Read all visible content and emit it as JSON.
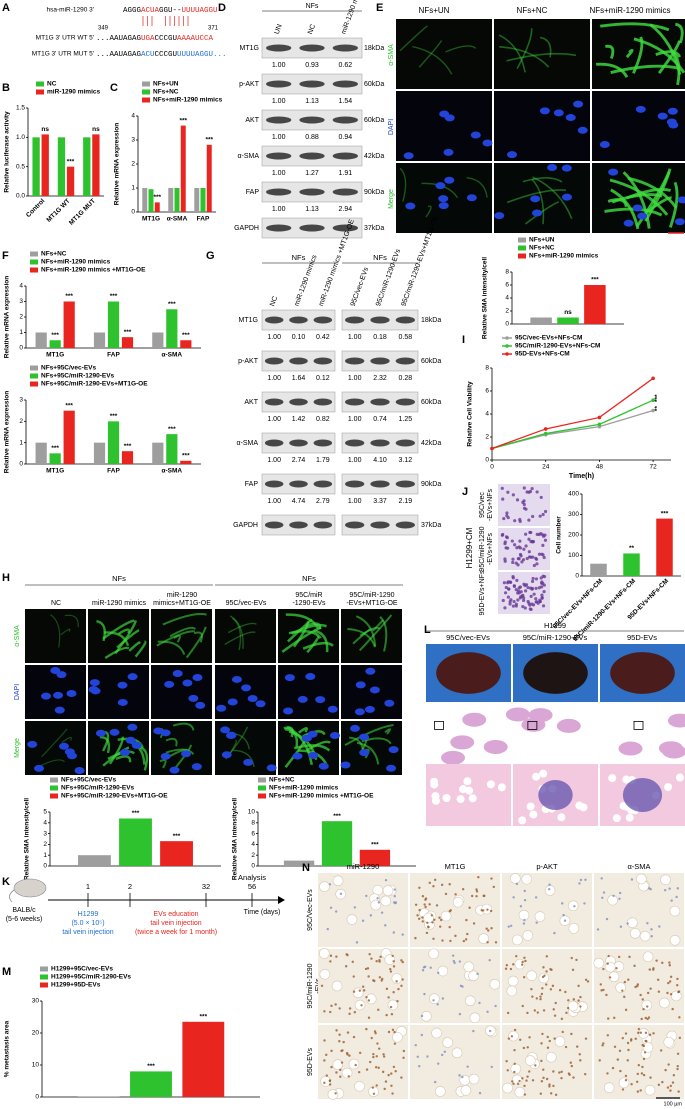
{
  "panels": {
    "a": {
      "label": "A",
      "positions": [
        "349",
        "371"
      ],
      "rows": [
        {
          "name": "hsa-miR-1290 3'",
          "segments": [
            {
              "text": "AGGG",
              "color": "#000000"
            },
            {
              "text": "ACUA",
              "color": "#e8251f"
            },
            {
              "text": "GGU--",
              "color": "#000000"
            },
            {
              "text": "UUUUAGGU",
              "color": "#e8251f"
            }
          ]
        },
        {
          "name": "MT1G 3' UTR WT 5'",
          "segments": [
            {
              "text": "...AAUAGAG",
              "color": "#000000"
            },
            {
              "text": "UGA",
              "color": "#e8251f"
            },
            {
              "text": "CCCGU",
              "color": "#000000"
            },
            {
              "text": "AAAAUCCA",
              "color": "#e8251f"
            }
          ]
        },
        {
          "name": "MT1G 3' UTR MUT 5'",
          "segments": [
            {
              "text": "...AAUAGAG",
              "color": "#000000"
            },
            {
              "text": "ACU",
              "color": "#1f6fd0"
            },
            {
              "text": "CCCGU",
              "color": "#000000"
            },
            {
              "text": "UUUUAGGU...",
              "color": "#1f6fd0"
            }
          ]
        }
      ]
    },
    "b": {
      "label": "B",
      "type": "bar",
      "ylabel": "Relative luciferase activity",
      "categories": [
        "Control",
        "MT1G WT",
        "MT1G MUT"
      ],
      "series": [
        {
          "name": "NC",
          "color": "#2ec22e",
          "values": [
            1.0,
            1.0,
            1.0
          ]
        },
        {
          "name": "miR-1290 mimics",
          "color": "#e8251f",
          "values": [
            1.05,
            0.5,
            1.05
          ],
          "sig": [
            "ns",
            "***",
            "ns"
          ]
        }
      ],
      "ylim": [
        0,
        1.5
      ],
      "yticks": [
        {
          "value": 0,
          "label": "0.0"
        },
        {
          "value": 0.5,
          "label": "0.5"
        },
        {
          "value": 1,
          "label": "1.0"
        },
        {
          "value": 1.5,
          "label": "1.5"
        }
      ]
    },
    "c": {
      "label": "C",
      "type": "bar",
      "ylabel": "Relative mRNA expression",
      "categories": [
        "MT1G",
        "α-SMA",
        "FAP"
      ],
      "series": [
        {
          "name": "NFs+UN",
          "color": "#9e9e9e",
          "values": [
            1.0,
            1.0,
            1.0
          ]
        },
        {
          "name": "NFs+NC",
          "color": "#2ec22e",
          "values": [
            0.95,
            1.0,
            1.0
          ]
        },
        {
          "name": "NFs+miR-1290 mimics",
          "color": "#e8251f",
          "values": [
            0.4,
            3.6,
            2.8
          ],
          "sig": [
            "***",
            "***",
            "***"
          ]
        }
      ],
      "ylim": [
        0,
        4
      ],
      "yticks": [
        0,
        1,
        2,
        3,
        4
      ]
    },
    "d": {
      "label": "D",
      "header": "NFs",
      "lanes": [
        "UN",
        "NC",
        "miR-1290 mimics"
      ],
      "rows": [
        {
          "name": "MT1G",
          "kda": "18kDa",
          "quant": [
            "1.00",
            "0.93",
            "0.62"
          ]
        },
        {
          "name": "p-AKT",
          "kda": "60kDa",
          "quant": [
            "1.00",
            "1.13",
            "1.54"
          ]
        },
        {
          "name": "AKT",
          "kda": "60kDa",
          "quant": [
            "1.00",
            "0.88",
            "0.94"
          ]
        },
        {
          "name": "α-SMA",
          "kda": "42kDa",
          "quant": [
            "1.00",
            "1.27",
            "1.91"
          ]
        },
        {
          "name": "FAP",
          "kda": "90kDa",
          "quant": [
            "1.00",
            "1.13",
            "2.94"
          ]
        },
        {
          "name": "GAPDH",
          "kda": "37kDa"
        }
      ]
    },
    "e": {
      "label": "E",
      "columns": [
        "NFs+UN",
        "NFs+NC",
        "NFs+miR-1290 mimics"
      ],
      "rows": [
        {
          "name": "α-SMA",
          "color": "#2ec22e"
        },
        {
          "name": "DAPI",
          "color": "#2040d0"
        },
        {
          "name": "Merge",
          "color": "#2ec22e"
        }
      ],
      "chart": {
        "type": "bar",
        "ylabel": "Relative SMA intensity/cell",
        "categories": [
          null
        ],
        "series": [
          {
            "name": "NFs+UN",
            "color": "#9e9e9e",
            "values": [
              1.0
            ]
          },
          {
            "name": "NFs+NC",
            "color": "#2ec22e",
            "values": [
              1.0
            ],
            "sig": [
              "ns"
            ]
          },
          {
            "name": "NFs+miR-1290 mimics",
            "color": "#e8251f",
            "values": [
              6.0
            ],
            "sig": [
              "***"
            ]
          }
        ],
        "ylim": [
          0,
          8
        ],
        "yticks": [
          0,
          2,
          4,
          6,
          8
        ]
      }
    },
    "f": {
      "label": "F",
      "charts": [
        {
          "type": "bar",
          "ylabel": "Relative mRNA expression",
          "categories": [
            "MT1G",
            "FAP",
            "α-SMA"
          ],
          "series": [
            {
              "name": "NFs+NC",
              "color": "#9e9e9e",
              "values": [
                1.0,
                1.0,
                1.0
              ]
            },
            {
              "name": "NFs+miR-1290 mimics",
              "color": "#2ec22e",
              "values": [
                0.5,
                3.0,
                2.5
              ],
              "sig": [
                "***",
                "***",
                "***"
              ]
            },
            {
              "name": "NFs+miR-1290 mimics +MT1G-OE",
              "color": "#e8251f",
              "values": [
                3.0,
                0.7,
                0.5
              ],
              "sig": [
                "***",
                "***",
                "***"
              ]
            }
          ],
          "ylim": [
            0,
            4
          ],
          "yticks": [
            0,
            1,
            2,
            3,
            4
          ]
        },
        {
          "type": "bar",
          "ylabel": "Relative mRNA expression",
          "categories": [
            "MT1G",
            "FAP",
            "α-SMA"
          ],
          "series": [
            {
              "name": "NFs+95C/vec-EVs",
              "color": "#9e9e9e",
              "values": [
                1.0,
                1.0,
                1.0
              ]
            },
            {
              "name": "NFs+95C/miR-1290-EVs",
              "color": "#2ec22e",
              "values": [
                0.5,
                2.0,
                1.4
              ],
              "sig": [
                "***",
                "***",
                "***"
              ]
            },
            {
              "name": "NFs+95C/miR-1290-EVs+MT1G-OE",
              "color": "#e8251f",
              "values": [
                2.5,
                0.6,
                0.15
              ],
              "sig": [
                "***",
                "***",
                "***"
              ]
            }
          ],
          "ylim": [
            0,
            3
          ],
          "yticks": [
            0,
            1,
            2,
            3
          ]
        }
      ]
    },
    "g": {
      "label": "G",
      "rows": [
        {
          "name": "MT1G",
          "kda": "18kDa"
        },
        {
          "name": "p-AKT",
          "kda": "60kDa"
        },
        {
          "name": "AKT",
          "kda": "60kDa"
        },
        {
          "name": "α-SMA",
          "kda": "42kDa"
        },
        {
          "name": "FAP",
          "kda": "90kDa"
        },
        {
          "name": "GAPDH",
          "kda": "37kDa"
        }
      ],
      "blots": [
        {
          "header": "NFs",
          "lanes": [
            "NC",
            "miR-1290 mimics",
            "miR-1290 mimics +MT1G-OE"
          ],
          "quant": [
            [
              "1.00",
              "0.10",
              "0.42"
            ],
            [
              "1.00",
              "1.64",
              "0.12"
            ],
            [
              "1.00",
              "1.42",
              "0.82"
            ],
            [
              "1.00",
              "2.74",
              "1.79"
            ],
            [
              "1.00",
              "4.74",
              "2.79"
            ]
          ]
        },
        {
          "header": "NFs",
          "lanes": [
            "95C/vec-EVs",
            "95C/miR-1290-EVs",
            "95C/miR-1290-EVs+MT1G-OE"
          ],
          "quant": [
            [
              "1.00",
              "0.18",
              "0.58"
            ],
            [
              "1.00",
              "2.32",
              "0.28"
            ],
            [
              "1.00",
              "0.74",
              "1.25"
            ],
            [
              "1.00",
              "4.10",
              "3.12"
            ],
            [
              "1.00",
              "3.37",
              "2.19"
            ]
          ]
        }
      ]
    },
    "h": {
      "label": "H",
      "groups": [
        "NFs",
        "NFs"
      ],
      "columns": [
        [
          "NC"
        ],
        [
          "miR-1290 mimics"
        ],
        [
          "miR-1290",
          "mimics+MT1G-OE"
        ],
        [
          "95C/vec-EVs"
        ],
        [
          "95C/miR",
          "-1290-EVs"
        ],
        [
          "95C/miR-1290",
          "-EVs+MT1G-OE"
        ]
      ],
      "rows": [
        {
          "name": "α-SMA",
          "color": "#2ec22e"
        },
        {
          "name": "DAPI",
          "color": "#2040d0"
        },
        {
          "name": "Merge",
          "color": "#2ec22e"
        }
      ],
      "charts": [
        {
          "type": "bar",
          "ylabel": "Relative SMA intensity/cell",
          "categories": [
            null
          ],
          "series": [
            {
              "name": "NFs+95C/vec-EVs",
              "color": "#9e9e9e",
              "values": [
                1.0
              ]
            },
            {
              "name": "NFs+95C/miR-1290-EVs",
              "color": "#2ec22e",
              "values": [
                4.4
              ],
              "sig": [
                "***"
              ]
            },
            {
              "name": "NFs+95C/miR-1290-EVs+MT1G-OE",
              "color": "#e8251f",
              "values": [
                2.3
              ],
              "sig": [
                "***"
              ]
            }
          ],
          "ylim": [
            0,
            5
          ],
          "yticks": [
            0,
            1,
            2,
            3,
            4,
            5
          ]
        },
        {
          "type": "bar",
          "ylabel": "Relative SMA intensity/cell",
          "categories": [
            null
          ],
          "series": [
            {
              "name": "NFs+NC",
              "color": "#9e9e9e",
              "values": [
                1.0
              ]
            },
            {
              "name": "NFs+miR-1290 mimics",
              "color": "#2ec22e",
              "values": [
                8.3
              ],
              "sig": [
                "***"
              ]
            },
            {
              "name": "NFs+miR-1290 mimics +MT1G-OE",
              "color": "#e8251f",
              "values": [
                3.0
              ],
              "sig": [
                "***"
              ]
            }
          ],
          "ylim": [
            0,
            10
          ],
          "yticks": [
            0,
            2,
            4,
            6,
            8,
            10
          ]
        }
      ]
    },
    "i": {
      "label": "I",
      "type": "line",
      "ylabel": "Relative Cell Viability",
      "xlabel": "Time(h)",
      "x": [
        0,
        24,
        48,
        72
      ],
      "xlim": [
        0,
        80
      ],
      "xticks": [
        0,
        24,
        48,
        72
      ],
      "ylim": [
        0,
        8
      ],
      "yticks": [
        0,
        2,
        4,
        6,
        8
      ],
      "series": [
        {
          "name": "95C/vec-EVs+NFs-CM",
          "color": "#9e9e9e",
          "values": [
            1.0,
            2.2,
            2.9,
            4.3
          ],
          "sig": "**"
        },
        {
          "name": "95C/miR-1290-EVs+NFs-CM",
          "color": "#2ec22e",
          "values": [
            1.0,
            2.3,
            3.1,
            5.2
          ],
          "sig": "***"
        },
        {
          "name": "95D-EVs+NFs-CM",
          "color": "#e8251f",
          "values": [
            1.0,
            2.7,
            3.7,
            7.1
          ]
        }
      ]
    },
    "j": {
      "label": "J",
      "group": "H1299+CM",
      "rows": [
        [
          "95C/vec",
          "-EVs+NFs"
        ],
        [
          "95C/miR-1290",
          "-EVs+NFs"
        ],
        [
          "95D-EVs+NFs"
        ]
      ],
      "chart": {
        "type": "bar",
        "ylabel": "Cell number",
        "categories": [
          "95C/vec-EVs+NFs-CM",
          "95C/miR-1290-EVs+NFs-CM",
          "95D-EVs+NFs-CM"
        ],
        "values": [
          60,
          110,
          280
        ],
        "colors": [
          "#9e9e9e",
          "#2ec22e",
          "#e8251f"
        ],
        "sig": [
          null,
          "**",
          "***"
        ],
        "ylim": [
          0,
          400
        ],
        "yticks": [
          0,
          100,
          200,
          300,
          400
        ]
      }
    },
    "k": {
      "label": "K",
      "mouse": [
        "BALB/c",
        "(5-6 weeks)"
      ],
      "days": [
        "1",
        "2",
        "32",
        "56"
      ],
      "injection": [
        "H1299",
        "(5.0 × 10⁵)",
        "tail vein injection"
      ],
      "education": [
        "EVs education",
        "tail vein injection",
        "(twice a week for 1 month)"
      ],
      "analysis": "Analysis",
      "axis": "Time (days)"
    },
    "l": {
      "label": "L",
      "header": "H1299",
      "columns": [
        "95C/vec-EVs",
        "95C/miR-1290-EVs",
        "95D-EVs"
      ]
    },
    "m": {
      "label": "M",
      "type": "bar",
      "ylabel": "% metastasis area",
      "categories": [
        null
      ],
      "series": [
        {
          "name": "H1299+95C/vec-EVs",
          "color": "#9e9e9e",
          "values": [
            0.2
          ]
        },
        {
          "name": "H1299+95C/miR-1290-EVs",
          "color": "#2ec22e",
          "values": [
            8.0
          ],
          "sig": [
            "***"
          ]
        },
        {
          "name": "H1299+95D-EVs",
          "color": "#e8251f",
          "values": [
            23.5
          ],
          "sig": [
            "***"
          ]
        }
      ],
      "ylim": [
        0,
        30
      ],
      "yticks": [
        0,
        10,
        20,
        30
      ]
    },
    "n": {
      "label": "N",
      "columns": [
        "miR-1290",
        "MT1G",
        "p-AKT",
        "α-SMA"
      ],
      "rows": [
        [
          "95C/Vec-EVs"
        ],
        [
          "95C/miR-1290",
          "-EVs"
        ],
        [
          "95D-EVs"
        ]
      ],
      "scale": "100 µm"
    }
  }
}
